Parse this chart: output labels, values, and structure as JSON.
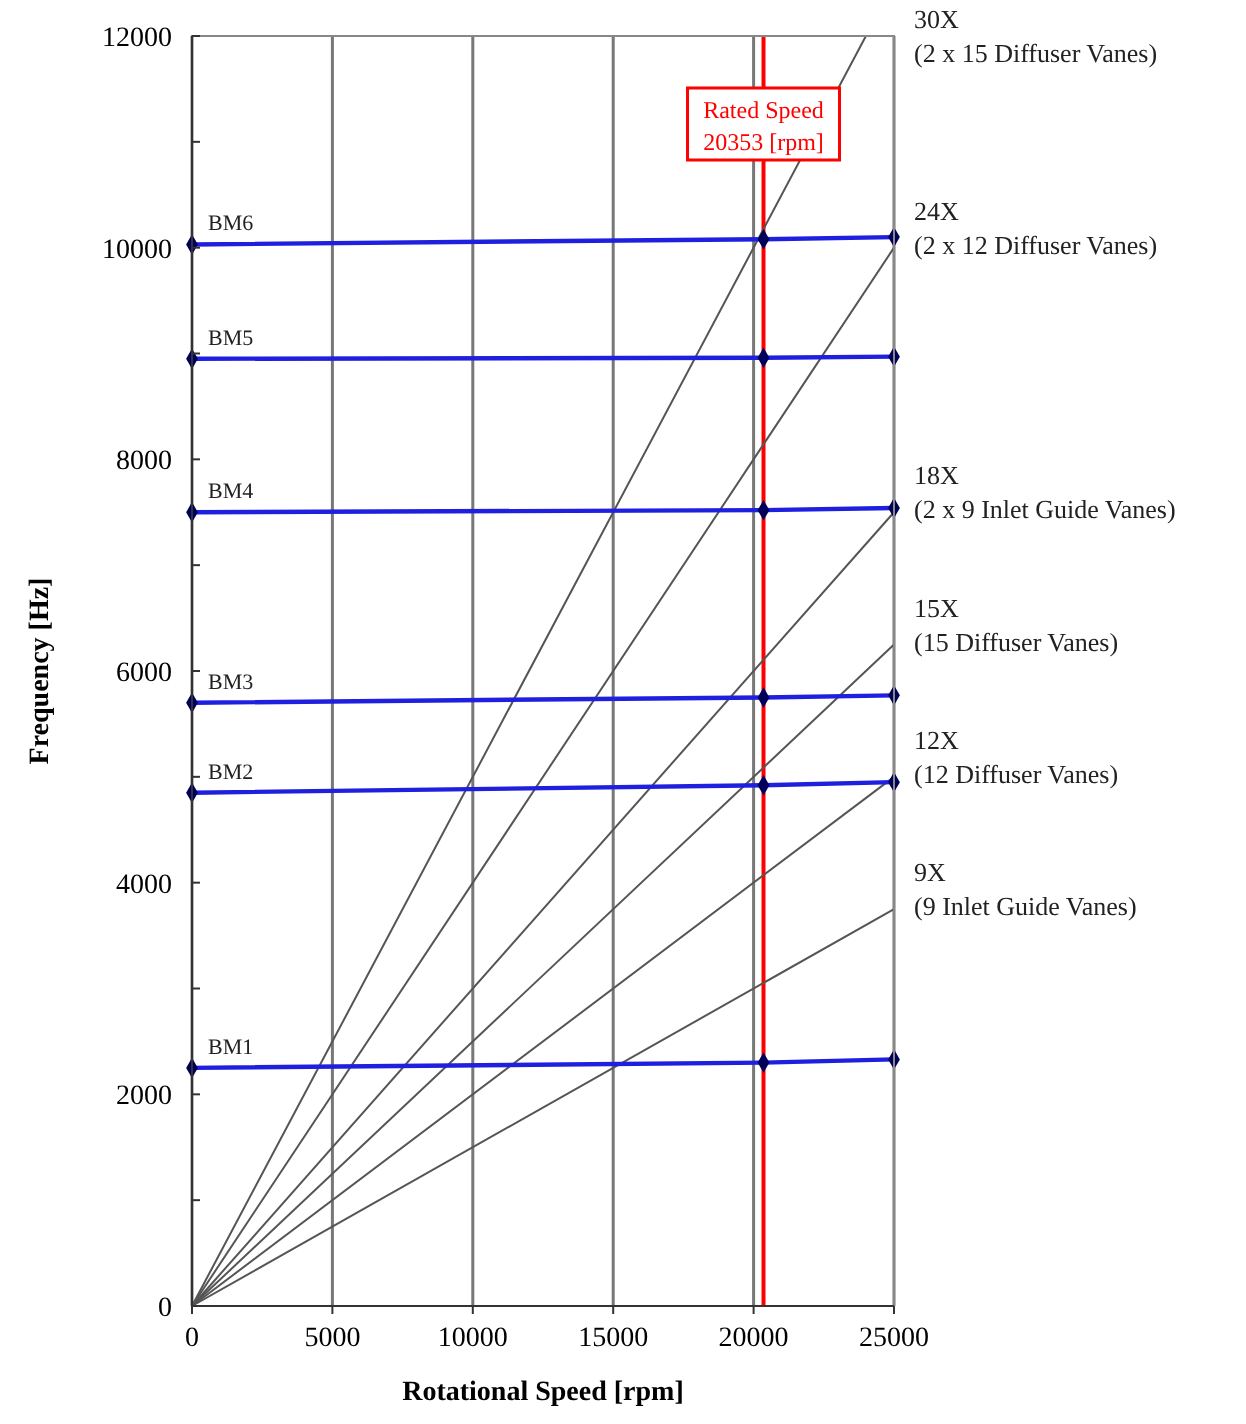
{
  "chart_data": {
    "type": "line",
    "xlabel": "Rotational Speed [rpm]",
    "ylabel": "Frequency [Hz]",
    "xlim": [
      0,
      25000
    ],
    "xticks": [
      0,
      5000,
      10000,
      15000,
      20000,
      25000
    ],
    "ylim": [
      0,
      12000
    ],
    "yticks": [
      0,
      {
        "value": 1000,
        "label": null
      },
      2000,
      {
        "value": 3000,
        "label": null
      },
      4000,
      {
        "value": 5000,
        "label": null
      },
      6000,
      {
        "value": 7000,
        "label": null
      },
      8000,
      {
        "value": 9000,
        "label": null
      },
      10000,
      {
        "value": 11000,
        "label": null
      },
      12000
    ],
    "grid": "x",
    "line_style": "solid",
    "series": [
      {
        "name": "9X\n(9 Inlet Guide Vanes)",
        "color": "#555555",
        "x": [
          0,
          25000
        ],
        "values": [
          0,
          3750
        ],
        "marker": "none"
      },
      {
        "name": "12X\n(12 Diffuser Vanes)",
        "color": "#555555",
        "x": [
          0,
          25000
        ],
        "values": [
          0,
          5000
        ],
        "marker": "none"
      },
      {
        "name": "15X\n(15 Diffuser Vanes)",
        "color": "#555555",
        "x": [
          0,
          25000
        ],
        "values": [
          0,
          6250
        ],
        "marker": "none"
      },
      {
        "name": "18X\n(2 x 9 Inlet Guide Vanes)",
        "color": "#555555",
        "x": [
          0,
          25000
        ],
        "values": [
          0,
          7500
        ],
        "marker": "none"
      },
      {
        "name": "24X\n(2 x 12 Diffuser Vanes)",
        "color": "#555555",
        "x": [
          0,
          25000
        ],
        "values": [
          0,
          10000
        ],
        "marker": "none"
      },
      {
        "name": "30X\n(2 x 15 Diffuser Vanes)",
        "color": "#555555",
        "x": [
          0,
          24000
        ],
        "values": [
          0,
          12000
        ],
        "marker": "none"
      },
      {
        "name": "BM1",
        "color": "#1f1fe0",
        "x": [
          0,
          20353,
          25000
        ],
        "values": [
          2250,
          2300,
          2330
        ],
        "marker": "diamond"
      },
      {
        "name": "BM2",
        "color": "#1f1fe0",
        "x": [
          0,
          20353,
          25000
        ],
        "values": [
          4850,
          4920,
          4950
        ],
        "marker": "diamond"
      },
      {
        "name": "BM3",
        "color": "#1f1fe0",
        "x": [
          0,
          20353,
          25000
        ],
        "values": [
          5700,
          5750,
          5770
        ],
        "marker": "diamond"
      },
      {
        "name": "BM4",
        "color": "#1f1fe0",
        "x": [
          0,
          20353,
          25000
        ],
        "values": [
          7500,
          7520,
          7540
        ],
        "marker": "diamond"
      },
      {
        "name": "BM5",
        "color": "#1f1fe0",
        "x": [
          0,
          20353,
          25000
        ],
        "values": [
          8950,
          8960,
          8970
        ],
        "marker": "diamond"
      },
      {
        "name": "BM6",
        "color": "#1f1fe0",
        "x": [
          0,
          20353,
          25000
        ],
        "values": [
          10030,
          10080,
          10100
        ],
        "marker": "diamond"
      }
    ],
    "ref_lines": [
      {
        "axis": "x",
        "value": 20353,
        "label": "Rated Speed\n20353 [rpm]",
        "color": "#ff0000"
      }
    ]
  }
}
